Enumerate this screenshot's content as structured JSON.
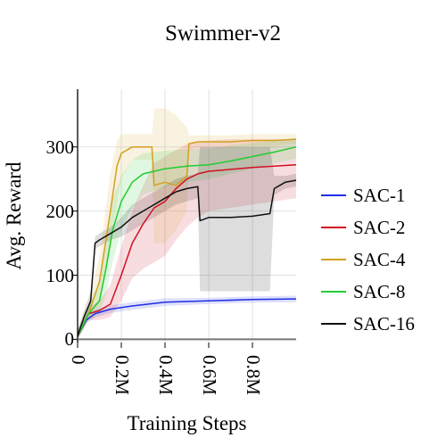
{
  "chart_data": {
    "type": "line",
    "title": "Swimmer-v2",
    "xlabel": "Training Steps",
    "ylabel": "Avg. Reward",
    "xlim": [
      0,
      1.0
    ],
    "ylim": [
      -5,
      390
    ],
    "x_unit": "M steps",
    "yticks": [
      "0",
      "100",
      "200",
      "300"
    ],
    "ytick_values": [
      0,
      100,
      200,
      300
    ],
    "xticks": [
      "0",
      "0.2M",
      "0.4M",
      "0.6M",
      "0.8M"
    ],
    "xtick_values": [
      0,
      0.2,
      0.4,
      0.6,
      0.8
    ],
    "grid": true,
    "legend_position": "right",
    "series": [
      {
        "name": "SAC-1",
        "color": "#1f2ee6",
        "x": [
          0,
          0.04,
          0.08,
          0.15,
          0.25,
          0.4,
          0.6,
          0.8,
          1.0
        ],
        "y": [
          5,
          30,
          40,
          47,
          52,
          58,
          60,
          62,
          63
        ],
        "band": [
          [
            0,
            15
          ],
          [
            25,
            35
          ],
          [
            34,
            46
          ],
          [
            41,
            53
          ],
          [
            46,
            58
          ],
          [
            52,
            64
          ],
          [
            55,
            65
          ],
          [
            57,
            67
          ],
          [
            58,
            68
          ]
        ]
      },
      {
        "name": "SAC-2",
        "color": "#d01020",
        "x": [
          0,
          0.05,
          0.1,
          0.15,
          0.2,
          0.25,
          0.3,
          0.35,
          0.4,
          0.45,
          0.5,
          0.55,
          0.6,
          0.7,
          0.8,
          0.9,
          1.0
        ],
        "y": [
          5,
          40,
          45,
          55,
          100,
          150,
          180,
          205,
          215,
          235,
          250,
          258,
          262,
          265,
          268,
          270,
          272
        ],
        "band": [
          [
            0,
            15
          ],
          [
            30,
            50
          ],
          [
            30,
            60
          ],
          [
            35,
            85
          ],
          [
            60,
            145
          ],
          [
            95,
            200
          ],
          [
            110,
            240
          ],
          [
            120,
            275
          ],
          [
            130,
            285
          ],
          [
            155,
            295
          ],
          [
            175,
            305
          ],
          [
            190,
            308
          ],
          [
            200,
            310
          ],
          [
            205,
            312
          ],
          [
            210,
            312
          ],
          [
            215,
            312
          ],
          [
            220,
            312
          ]
        ]
      },
      {
        "name": "SAC-4",
        "color": "#d4a020",
        "x": [
          0,
          0.05,
          0.1,
          0.15,
          0.18,
          0.2,
          0.25,
          0.34,
          0.35,
          0.4,
          0.45,
          0.5,
          0.51,
          0.55,
          0.6,
          0.7,
          0.8,
          0.9,
          1.0
        ],
        "y": [
          5,
          40,
          90,
          200,
          270,
          290,
          300,
          300,
          240,
          245,
          240,
          255,
          305,
          308,
          308,
          308,
          310,
          310,
          312
        ],
        "band": [
          [
            0,
            15
          ],
          [
            30,
            55
          ],
          [
            60,
            130
          ],
          [
            140,
            260
          ],
          [
            210,
            310
          ],
          [
            250,
            320
          ],
          [
            280,
            320
          ],
          [
            280,
            320
          ],
          [
            150,
            360
          ],
          [
            150,
            360
          ],
          [
            170,
            350
          ],
          [
            200,
            330
          ],
          [
            295,
            318
          ],
          [
            298,
            318
          ],
          [
            300,
            318
          ],
          [
            300,
            318
          ],
          [
            302,
            320
          ],
          [
            302,
            320
          ],
          [
            305,
            320
          ]
        ]
      },
      {
        "name": "SAC-8",
        "color": "#22cc33",
        "x": [
          0,
          0.05,
          0.1,
          0.13,
          0.16,
          0.2,
          0.25,
          0.3,
          0.35,
          0.4,
          0.5,
          0.6,
          0.7,
          0.8,
          0.9,
          1.0
        ],
        "y": [
          5,
          40,
          60,
          110,
          170,
          215,
          245,
          258,
          262,
          266,
          270,
          272,
          278,
          285,
          292,
          300
        ],
        "band": [
          [
            0,
            15
          ],
          [
            30,
            55
          ],
          [
            40,
            90
          ],
          [
            70,
            150
          ],
          [
            120,
            220
          ],
          [
            170,
            255
          ],
          [
            205,
            280
          ],
          [
            225,
            290
          ],
          [
            232,
            292
          ],
          [
            238,
            294
          ],
          [
            245,
            296
          ],
          [
            250,
            298
          ],
          [
            258,
            302
          ],
          [
            266,
            306
          ],
          [
            274,
            310
          ],
          [
            282,
            314
          ]
        ]
      },
      {
        "name": "SAC-16",
        "color": "#111111",
        "x": [
          0,
          0.03,
          0.06,
          0.08,
          0.1,
          0.15,
          0.2,
          0.25,
          0.3,
          0.35,
          0.4,
          0.45,
          0.5,
          0.55,
          0.56,
          0.6,
          0.7,
          0.8,
          0.88,
          0.9,
          0.95,
          1.0
        ],
        "y": [
          5,
          35,
          60,
          150,
          155,
          165,
          175,
          190,
          200,
          210,
          220,
          230,
          235,
          238,
          185,
          190,
          190,
          192,
          196,
          235,
          245,
          248
        ],
        "band": [
          [
            0,
            15
          ],
          [
            25,
            45
          ],
          [
            45,
            75
          ],
          [
            140,
            160
          ],
          [
            145,
            165
          ],
          [
            155,
            175
          ],
          [
            160,
            190
          ],
          [
            170,
            210
          ],
          [
            180,
            220
          ],
          [
            190,
            230
          ],
          [
            200,
            240
          ],
          [
            210,
            250
          ],
          [
            215,
            255
          ],
          [
            220,
            258
          ],
          [
            75,
            300
          ],
          [
            75,
            300
          ],
          [
            75,
            300
          ],
          [
            75,
            300
          ],
          [
            75,
            300
          ],
          [
            225,
            255
          ],
          [
            235,
            255
          ],
          [
            238,
            258
          ]
        ]
      }
    ]
  }
}
